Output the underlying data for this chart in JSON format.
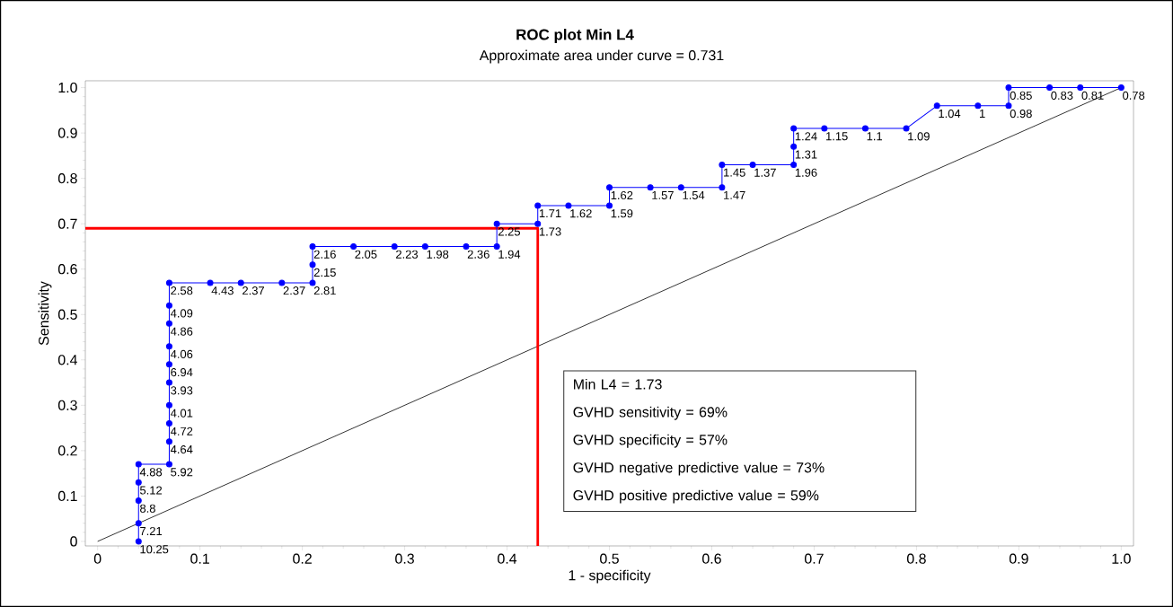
{
  "chart_data": {
    "type": "line",
    "title": "ROC plot Min L4",
    "subtitle": "Approximate area under curve = 0.731",
    "xlabel": "1 - specificity",
    "ylabel": "Sensitivity",
    "xlim": [
      -0.012,
      1.012
    ],
    "ylim": [
      -0.01,
      1.015
    ],
    "xticks": [
      0,
      0.1,
      0.2,
      0.3,
      0.4,
      0.5,
      0.6,
      0.7,
      0.8,
      0.9,
      {
        "value": 1,
        "label": "1.0"
      }
    ],
    "yticks": [
      0,
      0.1,
      0.2,
      0.3,
      0.4,
      0.5,
      0.6,
      0.7,
      0.8,
      0.9,
      {
        "value": 1,
        "label": "1.0"
      }
    ],
    "grid": false,
    "series": [
      {
        "color": "#000000",
        "marker": "none",
        "x": [
          0,
          1
        ],
        "values": [
          0,
          1
        ]
      },
      {
        "color": "#ff0000",
        "marker": "none",
        "x": [
          -0.012,
          0.43,
          0.43
        ],
        "values": [
          0.69,
          0.69,
          -0.01
        ]
      },
      {
        "color": "#0000ff",
        "marker": "circle",
        "x": [
          0.04,
          0.04,
          0.04,
          0.04,
          0.04,
          0.07,
          0.07,
          0.07,
          0.07,
          0.07,
          0.07,
          0.07,
          0.07,
          0.07,
          0.07,
          0.11,
          0.14,
          0.18,
          0.21,
          0.21,
          0.21,
          0.25,
          0.29,
          0.32,
          0.36,
          0.39,
          0.39,
          0.43,
          0.43,
          0.46,
          0.5,
          0.5,
          0.54,
          0.57,
          0.61,
          0.61,
          0.64,
          0.68,
          0.68,
          0.68,
          0.71,
          0.75,
          0.79,
          0.82,
          0.86,
          0.89,
          0.89,
          0.93,
          0.96,
          1
        ],
        "values": [
          0,
          0.04,
          0.09,
          0.13,
          0.17,
          0.17,
          0.22,
          0.26,
          0.3,
          0.35,
          0.39,
          0.43,
          0.48,
          0.52,
          0.57,
          0.57,
          0.57,
          0.57,
          0.57,
          0.61,
          0.65,
          0.65,
          0.65,
          0.65,
          0.65,
          0.65,
          0.7,
          0.7,
          0.74,
          0.74,
          0.74,
          0.78,
          0.78,
          0.78,
          0.78,
          0.83,
          0.83,
          0.83,
          0.87,
          0.91,
          0.91,
          0.91,
          0.91,
          0.96,
          0.96,
          0.96,
          1,
          1,
          1,
          1
        ]
      }
    ],
    "annotations": [
      "Min L4 = 1.73",
      "GVHD sensitivity = 69%",
      "GVHD specificity = 57%",
      "GVHD negative predictive value = 73%",
      "GVHD positive predictive value = 59%",
      {
        "text": "10.25",
        "x": 0.04,
        "y": 0
      },
      {
        "text": "7.21",
        "x": 0.04,
        "y": 0.04
      },
      {
        "text": "8.8",
        "x": 0.04,
        "y": 0.09
      },
      {
        "text": "5.12",
        "x": 0.04,
        "y": 0.13
      },
      {
        "text": "4.88",
        "x": 0.04,
        "y": 0.17
      },
      {
        "text": "5.92",
        "x": 0.07,
        "y": 0.17
      },
      {
        "text": "4.64",
        "x": 0.07,
        "y": 0.22
      },
      {
        "text": "4.72",
        "x": 0.07,
        "y": 0.26
      },
      {
        "text": "4.01",
        "x": 0.07,
        "y": 0.3
      },
      {
        "text": "3.93",
        "x": 0.07,
        "y": 0.35
      },
      {
        "text": "6.94",
        "x": 0.07,
        "y": 0.39
      },
      {
        "text": "4.06",
        "x": 0.07,
        "y": 0.43
      },
      {
        "text": "4.86",
        "x": 0.07,
        "y": 0.48
      },
      {
        "text": "4.09",
        "x": 0.07,
        "y": 0.52
      },
      {
        "text": "2.58",
        "x": 0.07,
        "y": 0.57
      },
      {
        "text": "4.43",
        "x": 0.11,
        "y": 0.57
      },
      {
        "text": "2.37",
        "x": 0.14,
        "y": 0.57
      },
      {
        "text": "2.37",
        "x": 0.18,
        "y": 0.57
      },
      {
        "text": "2.81",
        "x": 0.21,
        "y": 0.57
      },
      {
        "text": "2.15",
        "x": 0.21,
        "y": 0.61
      },
      {
        "text": "2.16",
        "x": 0.21,
        "y": 0.65
      },
      {
        "text": "2.05",
        "x": 0.25,
        "y": 0.65
      },
      {
        "text": "2.23",
        "x": 0.29,
        "y": 0.65
      },
      {
        "text": "1.98",
        "x": 0.32,
        "y": 0.65
      },
      {
        "text": "2.36",
        "x": 0.36,
        "y": 0.65
      },
      {
        "text": "1.94",
        "x": 0.39,
        "y": 0.65
      },
      {
        "text": "2.25",
        "x": 0.39,
        "y": 0.7
      },
      {
        "text": "1.73",
        "x": 0.43,
        "y": 0.7
      },
      {
        "text": "1.71",
        "x": 0.43,
        "y": 0.74
      },
      {
        "text": "1.62",
        "x": 0.46,
        "y": 0.74
      },
      {
        "text": "1.59",
        "x": 0.5,
        "y": 0.74
      },
      {
        "text": "1.62",
        "x": 0.5,
        "y": 0.78
      },
      {
        "text": "1.57",
        "x": 0.54,
        "y": 0.78
      },
      {
        "text": "1.54",
        "x": 0.57,
        "y": 0.78
      },
      {
        "text": "1.47",
        "x": 0.61,
        "y": 0.78
      },
      {
        "text": "1.45",
        "x": 0.61,
        "y": 0.83
      },
      {
        "text": "1.37",
        "x": 0.64,
        "y": 0.83
      },
      {
        "text": "1.96",
        "x": 0.68,
        "y": 0.83
      },
      {
        "text": "1.31",
        "x": 0.68,
        "y": 0.87
      },
      {
        "text": "1.24",
        "x": 0.68,
        "y": 0.91
      },
      {
        "text": "1.15",
        "x": 0.71,
        "y": 0.91
      },
      {
        "text": "1.1",
        "x": 0.75,
        "y": 0.91
      },
      {
        "text": "1.09",
        "x": 0.79,
        "y": 0.91
      },
      {
        "text": "1.04",
        "x": 0.82,
        "y": 0.96
      },
      {
        "text": "1",
        "x": 0.86,
        "y": 0.96
      },
      {
        "text": "0.98",
        "x": 0.89,
        "y": 0.96
      },
      {
        "text": "0.85",
        "x": 0.89,
        "y": 1
      },
      {
        "text": "0.83",
        "x": 0.93,
        "y": 1
      },
      {
        "text": "0.81",
        "x": 0.96,
        "y": 1
      },
      {
        "text": "0.78",
        "x": 1,
        "y": 1
      }
    ]
  }
}
